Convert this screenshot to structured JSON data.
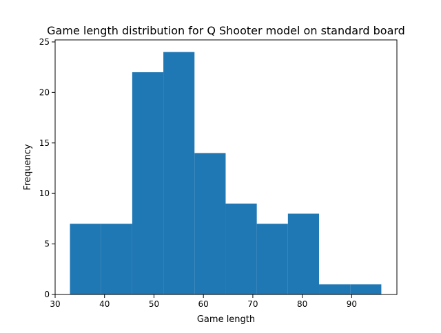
{
  "chart_data": {
    "type": "bar",
    "title": "Game length distribution for Q Shooter model on standard board",
    "xlabel": "Game length",
    "ylabel": "Frequency",
    "bin_edges": [
      33.0,
      39.3,
      45.6,
      51.9,
      58.2,
      64.5,
      70.8,
      77.1,
      83.4,
      89.7,
      96.0
    ],
    "values": [
      7,
      7,
      22,
      24,
      14,
      9,
      7,
      8,
      1,
      1
    ],
    "xlim": [
      30,
      99.15
    ],
    "ylim": [
      0,
      25.2
    ],
    "xticks": [
      30,
      40,
      50,
      60,
      70,
      80,
      90
    ],
    "yticks": [
      0,
      5,
      10,
      15,
      20,
      25
    ],
    "bar_color": "#1f77b4",
    "grid": false
  }
}
